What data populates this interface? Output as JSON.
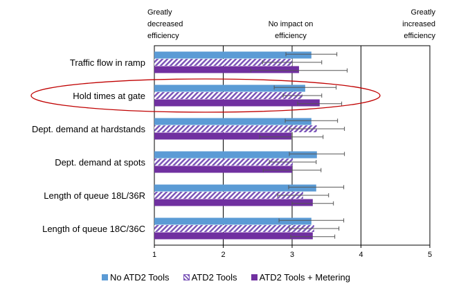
{
  "chart_data": {
    "type": "bar",
    "orientation": "horizontal",
    "categories": [
      "Traffic flow in ramp",
      "Hold times at gate",
      "Dept. demand at hardstands",
      "Dept. demand at spots",
      "Length of queue 18L/36R",
      "Length of queue 18C/36C"
    ],
    "series": [
      {
        "name": "No ATD2 Tools",
        "color": "#5b9bd5",
        "pattern": "solid",
        "values": [
          3.28,
          3.19,
          3.28,
          3.36,
          3.35,
          3.28
        ],
        "errors": [
          0.37,
          0.45,
          0.38,
          0.4,
          0.4,
          0.47
        ]
      },
      {
        "name": "ATD2 Tools",
        "color": "#7b55b8",
        "pattern": "hatched",
        "values": [
          3.0,
          3.15,
          3.36,
          3.01,
          3.16,
          3.32
        ],
        "errors": [
          0.43,
          0.28,
          0.4,
          0.34,
          0.37,
          0.36
        ]
      },
      {
        "name": "ATD2 Tools + Metering",
        "color": "#7030a0",
        "pattern": "solid",
        "values": [
          3.1,
          3.4,
          2.99,
          3.0,
          3.3,
          3.3
        ],
        "errors": [
          0.7,
          0.32,
          0.46,
          0.42,
          0.3,
          0.32
        ]
      }
    ],
    "xlim": [
      1,
      5
    ],
    "xticks": [
      1,
      2,
      3,
      4,
      5
    ],
    "top_labels": [
      {
        "text": [
          "Greatly",
          "decreased",
          "efficiency"
        ],
        "align": "left-edge"
      },
      {
        "text": [
          "No impact on",
          "efficiency"
        ],
        "align": "center"
      },
      {
        "text": [
          "Greatly",
          "increased",
          "efficiency"
        ],
        "align": "right-edge"
      }
    ],
    "annotation": {
      "type": "ellipse",
      "target": "Hold times at gate",
      "color": "#c00000"
    },
    "legend": {
      "position": "bottom"
    },
    "grid": "vertical-major"
  }
}
